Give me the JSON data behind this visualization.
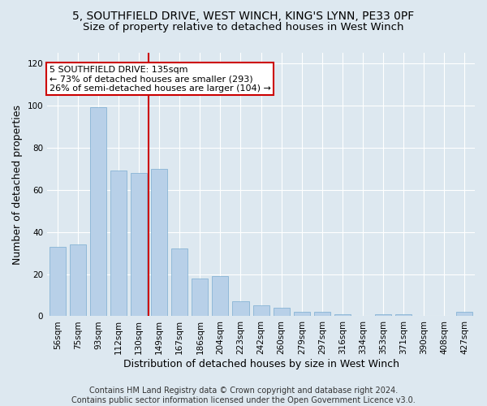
{
  "title_line1": "5, SOUTHFIELD DRIVE, WEST WINCH, KING'S LYNN, PE33 0PF",
  "title_line2": "Size of property relative to detached houses in West Winch",
  "xlabel": "Distribution of detached houses by size in West Winch",
  "ylabel": "Number of detached properties",
  "bar_color": "#b8d0e8",
  "bar_edge_color": "#7aadd0",
  "categories": [
    "56sqm",
    "75sqm",
    "93sqm",
    "112sqm",
    "130sqm",
    "149sqm",
    "167sqm",
    "186sqm",
    "204sqm",
    "223sqm",
    "242sqm",
    "260sqm",
    "279sqm",
    "297sqm",
    "316sqm",
    "334sqm",
    "353sqm",
    "371sqm",
    "390sqm",
    "408sqm",
    "427sqm"
  ],
  "bar_values": [
    33,
    34,
    99,
    69,
    68,
    70,
    32,
    18,
    19,
    7,
    5,
    4,
    2,
    2,
    1,
    0,
    1,
    1,
    0,
    0,
    2
  ],
  "ylim": [
    0,
    125
  ],
  "yticks": [
    0,
    20,
    40,
    60,
    80,
    100,
    120
  ],
  "red_line_x": 4.47,
  "annotation_text_line1": "5 SOUTHFIELD DRIVE: 135sqm",
  "annotation_text_line2": "← 73% of detached houses are smaller (293)",
  "annotation_text_line3": "26% of semi-detached houses are larger (104) →",
  "annotation_box_facecolor": "#ffffff",
  "annotation_box_edgecolor": "#cc0000",
  "red_line_color": "#cc0000",
  "footer_line1": "Contains HM Land Registry data © Crown copyright and database right 2024.",
  "footer_line2": "Contains public sector information licensed under the Open Government Licence v3.0.",
  "background_color": "#dde8f0",
  "grid_color": "#ffffff",
  "title_fontsize": 10,
  "subtitle_fontsize": 9.5,
  "ylabel_fontsize": 9,
  "xlabel_fontsize": 9,
  "tick_fontsize": 7.5,
  "annotation_fontsize": 8,
  "footer_fontsize": 7
}
